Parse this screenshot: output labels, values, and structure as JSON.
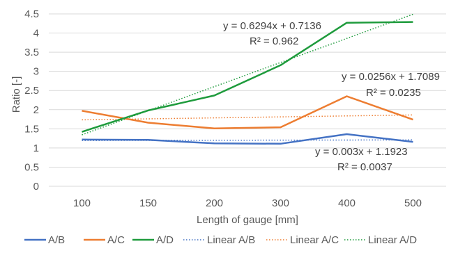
{
  "chart_data": {
    "type": "line",
    "title": "",
    "xlabel": "Length of gauge [mm]",
    "ylabel": "Ratio [-]",
    "categories": [
      "100",
      "150",
      "200",
      "300",
      "400",
      "500"
    ],
    "ylim": [
      0,
      4.5
    ],
    "yticks": [
      "0",
      "0.5",
      "1",
      "1.5",
      "2",
      "2.5",
      "3",
      "3.5",
      "4",
      "4.5"
    ],
    "grid": true,
    "legend_position": "bottom",
    "series": [
      {
        "name": "A/B",
        "color": "#4472C4",
        "values": [
          1.22,
          1.21,
          1.12,
          1.11,
          1.36,
          1.16
        ]
      },
      {
        "name": "A/C",
        "color": "#ED7D31",
        "values": [
          1.97,
          1.66,
          1.51,
          1.54,
          2.35,
          1.74
        ]
      },
      {
        "name": "A/D",
        "color": "#1E9B3C",
        "values": [
          1.42,
          1.98,
          2.37,
          3.16,
          4.27,
          4.29
        ]
      }
    ],
    "trendlines": [
      {
        "name": "Linear A/B",
        "color": "#4472C4",
        "slope": 0.003,
        "intercept": 1.1923,
        "equation": "y = 0.003x + 1.1923",
        "r2": "R² = 0.0037"
      },
      {
        "name": "Linear A/C",
        "color": "#ED7D31",
        "slope": 0.0256,
        "intercept": 1.7089,
        "equation": "y = 0.0256x + 1.7089",
        "r2": "R² = 0.0235"
      },
      {
        "name": "Linear A/D",
        "color": "#1E9B3C",
        "slope": 0.6294,
        "intercept": 0.7136,
        "equation": "y = 0.6294x + 0.7136",
        "r2": "R² = 0.962"
      }
    ]
  }
}
